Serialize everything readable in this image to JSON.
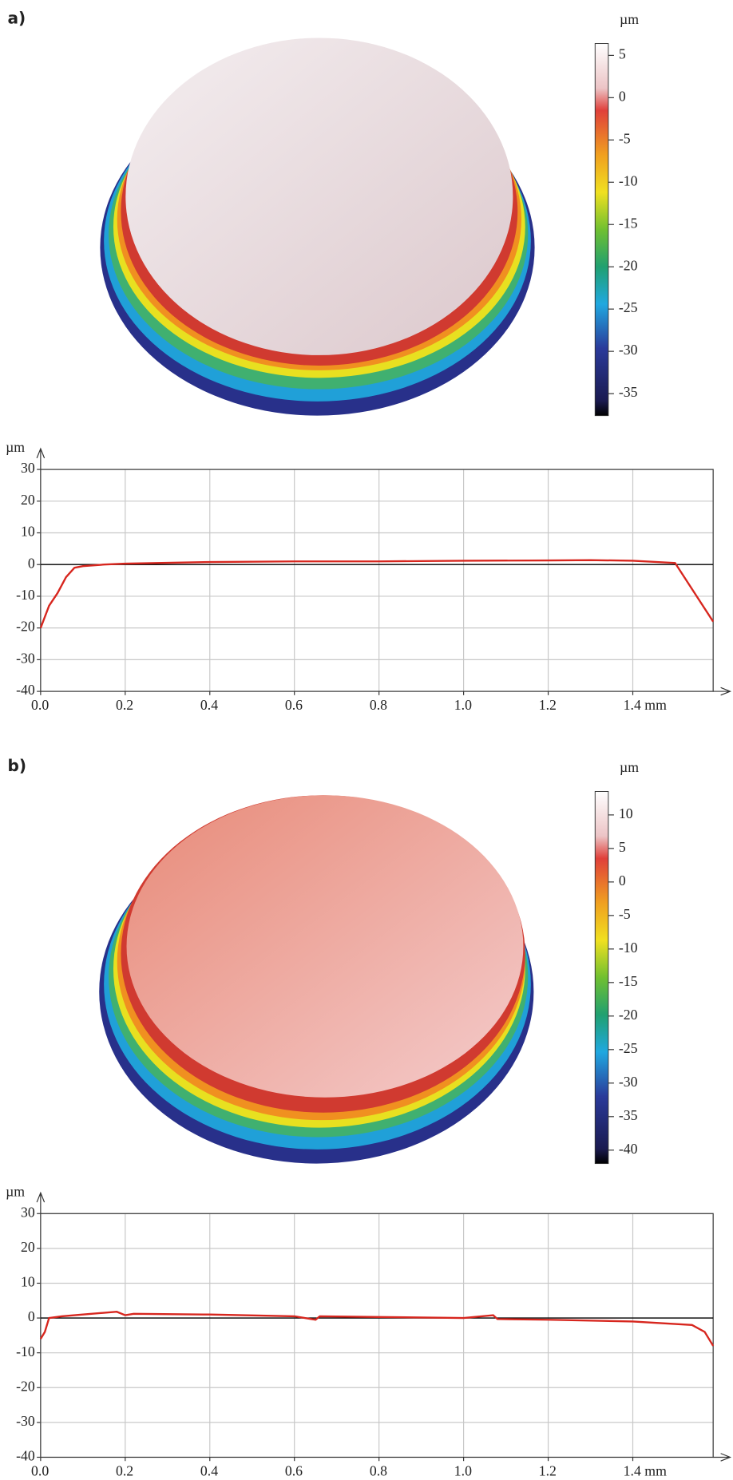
{
  "chart_data": [
    {
      "type": "line",
      "panel_label": "a)",
      "y_unit": "µm",
      "x": [
        0,
        0.02,
        0.04,
        0.06,
        0.08,
        0.1,
        0.15,
        0.2,
        0.4,
        0.6,
        0.8,
        1.0,
        1.2,
        1.3,
        1.4,
        1.5,
        1.59
      ],
      "series": [
        {
          "color": "#d7261e",
          "values": [
            -20,
            -13,
            -9,
            -4,
            -1,
            -0.5,
            0,
            0.3,
            0.8,
            1,
            1,
            1.2,
            1.3,
            1.4,
            1.2,
            0.5,
            -18
          ]
        }
      ],
      "xlim": [
        0,
        1.59
      ],
      "ylim": [
        -40,
        30
      ],
      "xticks": [
        {
          "value": 0,
          "label": "0.0"
        },
        0.2,
        0.4,
        0.6,
        0.8,
        {
          "value": 1,
          "label": "1.0"
        },
        1.2,
        {
          "value": 1.4,
          "label": "1.4 mm"
        }
      ],
      "yticks": [
        30,
        20,
        10,
        0,
        -10,
        -20,
        -30,
        -40
      ],
      "grid": true,
      "colorbar": {
        "label": "µm",
        "lim": [
          -37.6,
          6.4
        ],
        "ticks": [
          5,
          0,
          -5,
          -10,
          -15,
          -20,
          -25,
          -30,
          -35
        ]
      }
    },
    {
      "type": "line",
      "panel_label": "b)",
      "y_unit": "µm",
      "x": [
        0,
        0.01,
        0.02,
        0.05,
        0.1,
        0.18,
        0.2,
        0.22,
        0.4,
        0.6,
        0.65,
        0.66,
        0.8,
        1.0,
        1.07,
        1.08,
        1.2,
        1.4,
        1.54,
        1.57,
        1.59
      ],
      "series": [
        {
          "color": "#d7261e",
          "values": [
            -6,
            -4,
            0,
            0.5,
            1,
            1.8,
            0.8,
            1.2,
            1,
            0.5,
            -0.5,
            0.5,
            0.3,
            0,
            0.8,
            -0.3,
            -0.5,
            -1,
            -2,
            -4,
            -8
          ]
        }
      ],
      "xlim": [
        0,
        1.59
      ],
      "ylim": [
        -40,
        30
      ],
      "xticks": [
        {
          "value": 0,
          "label": "0.0"
        },
        0.2,
        0.4,
        0.6,
        0.8,
        {
          "value": 1,
          "label": "1.0"
        },
        1.2,
        {
          "value": 1.4,
          "label": "1.4 mm"
        }
      ],
      "yticks": [
        30,
        20,
        10,
        0,
        -10,
        -20,
        -30,
        -40
      ],
      "grid": true,
      "colorbar": {
        "label": "µm",
        "lim": [
          -42,
          13.5
        ],
        "ticks": [
          10,
          5,
          0,
          -5,
          -10,
          -15,
          -20,
          -25,
          -30,
          -35,
          -40
        ]
      }
    }
  ]
}
